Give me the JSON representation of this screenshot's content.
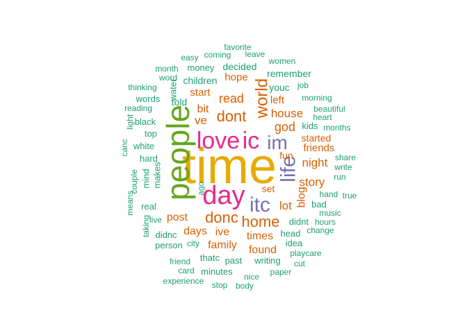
{
  "colors": {
    "tier1": "#E6AB02",
    "tier2": "#66A61E",
    "tier3": "#E7298A",
    "tier4": "#7570B3",
    "tier5": "#D95F02",
    "tier6": "#1B9E77"
  },
  "words": [
    {
      "text": "time",
      "tier": 1
    },
    {
      "text": "people",
      "tier": 2
    },
    {
      "text": "day",
      "tier": 3
    },
    {
      "text": "love",
      "tier": 3
    },
    {
      "text": "ic",
      "tier": 3
    },
    {
      "text": "im",
      "tier": 4
    },
    {
      "text": "itc",
      "tier": 4
    },
    {
      "text": "life",
      "tier": 4
    },
    {
      "text": "world",
      "tier": 5
    },
    {
      "text": "dont",
      "tier": 5
    },
    {
      "text": "donc",
      "tier": 5
    },
    {
      "text": "home",
      "tier": 5
    },
    {
      "text": "read",
      "tier": 5
    },
    {
      "text": "god",
      "tier": 5
    },
    {
      "text": "house",
      "tier": 5
    },
    {
      "text": "night",
      "tier": 5
    },
    {
      "text": "story",
      "tier": 5
    },
    {
      "text": "lot",
      "tier": 5
    },
    {
      "text": "ve",
      "tier": 5
    },
    {
      "text": "bit",
      "tier": 5
    },
    {
      "text": "post",
      "tier": 5
    },
    {
      "text": "days",
      "tier": 5
    },
    {
      "text": "ive",
      "tier": 5
    },
    {
      "text": "family",
      "tier": 5
    },
    {
      "text": "times",
      "tier": 5
    },
    {
      "text": "found",
      "tier": 5
    },
    {
      "text": "blog",
      "tier": 5
    },
    {
      "text": "friends",
      "tier": 5
    },
    {
      "text": "started",
      "tier": 5
    },
    {
      "text": "hope",
      "tier": 5
    },
    {
      "text": "start",
      "tier": 5
    },
    {
      "text": "left",
      "tier": 5
    },
    {
      "text": "set",
      "tier": 5
    },
    {
      "text": "fun",
      "tier": 5
    },
    {
      "text": "youc",
      "tier": 6
    },
    {
      "text": "remember",
      "tier": 6
    },
    {
      "text": "decided",
      "tier": 6
    },
    {
      "text": "children",
      "tier": 6
    },
    {
      "text": "told",
      "tier": 6
    },
    {
      "text": "money",
      "tier": 6
    },
    {
      "text": "month",
      "tier": 6
    },
    {
      "text": "word",
      "tier": 6
    },
    {
      "text": "water",
      "tier": 6
    },
    {
      "text": "thinking",
      "tier": 6
    },
    {
      "text": "words",
      "tier": 6
    },
    {
      "text": "reading",
      "tier": 6
    },
    {
      "text": "black",
      "tier": 6
    },
    {
      "text": "light",
      "tier": 6
    },
    {
      "text": "top",
      "tier": 6
    },
    {
      "text": "white",
      "tier": 6
    },
    {
      "text": "canc",
      "tier": 6
    },
    {
      "text": "hard",
      "tier": 6
    },
    {
      "text": "mind",
      "tier": 6
    },
    {
      "text": "makes",
      "tier": 6
    },
    {
      "text": "couple",
      "tier": 6
    },
    {
      "text": "real",
      "tier": 6
    },
    {
      "text": "means",
      "tier": 6
    },
    {
      "text": "live",
      "tier": 6
    },
    {
      "text": "taking",
      "tier": 6
    },
    {
      "text": "didnc",
      "tier": 6
    },
    {
      "text": "person",
      "tier": 6
    },
    {
      "text": "city",
      "tier": 6
    },
    {
      "text": "ago",
      "tier": 6
    },
    {
      "text": "thatc",
      "tier": 6
    },
    {
      "text": "friend",
      "tier": 6
    },
    {
      "text": "past",
      "tier": 6
    },
    {
      "text": "card",
      "tier": 6
    },
    {
      "text": "minutes",
      "tier": 6
    },
    {
      "text": "experience",
      "tier": 6
    },
    {
      "text": "stop",
      "tier": 6
    },
    {
      "text": "body",
      "tier": 6
    },
    {
      "text": "nice",
      "tier": 6
    },
    {
      "text": "paper",
      "tier": 6
    },
    {
      "text": "writing",
      "tier": 6
    },
    {
      "text": "cut",
      "tier": 6
    },
    {
      "text": "playcare",
      "tier": 6
    },
    {
      "text": "idea",
      "tier": 6
    },
    {
      "text": "head",
      "tier": 6
    },
    {
      "text": "change",
      "tier": 6
    },
    {
      "text": "didnt",
      "tier": 6
    },
    {
      "text": "hours",
      "tier": 6
    },
    {
      "text": "music",
      "tier": 6
    },
    {
      "text": "bad",
      "tier": 6
    },
    {
      "text": "hand",
      "tier": 6
    },
    {
      "text": "true",
      "tier": 6
    },
    {
      "text": "run",
      "tier": 6
    },
    {
      "text": "write",
      "tier": 6
    },
    {
      "text": "share",
      "tier": 6
    },
    {
      "text": "kids",
      "tier": 6
    },
    {
      "text": "months",
      "tier": 6
    },
    {
      "text": "heart",
      "tier": 6
    },
    {
      "text": "beautiful",
      "tier": 6
    },
    {
      "text": "morning",
      "tier": 6
    },
    {
      "text": "job",
      "tier": 6
    },
    {
      "text": "women",
      "tier": 6
    },
    {
      "text": "leave",
      "tier": 6
    },
    {
      "text": "coming",
      "tier": 6
    },
    {
      "text": "favorite",
      "tier": 6
    },
    {
      "text": "easy",
      "tier": 6
    }
  ]
}
